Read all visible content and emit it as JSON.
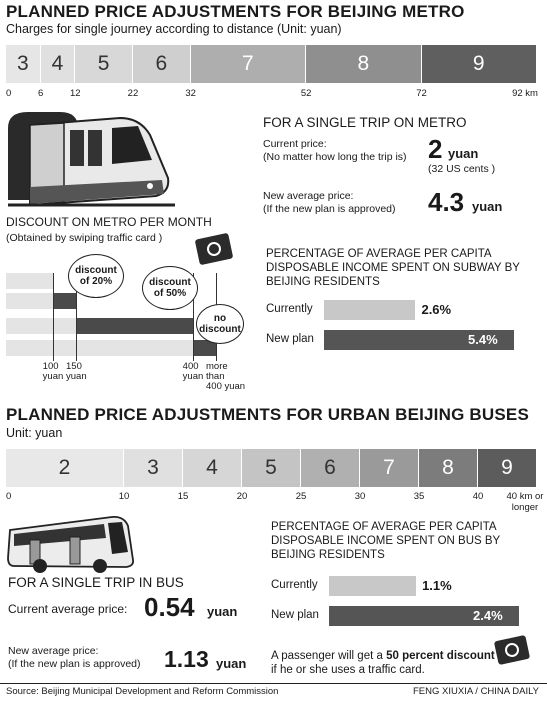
{
  "metro": {
    "title": "PLANNED PRICE ADJUSTMENTS FOR BEIJING METRO",
    "subtitle": "Charges for single journey according to distance (Unit: yuan)",
    "fares": [
      "3",
      "4",
      "5",
      "6",
      "7",
      "8",
      "9"
    ],
    "distance_ticks": [
      "0",
      "6",
      "12",
      "22",
      "32",
      "52",
      "72",
      "92 km"
    ],
    "single_trip": {
      "heading": "FOR A SINGLE TRIP ON METRO",
      "current_label_1": "Current price:",
      "current_label_2": "(No matter how long the trip is)",
      "current_value": "2",
      "current_unit": "yuan",
      "current_usd": "(32 US cents )",
      "new_label_1": "New average price:",
      "new_label_2": "(If the new plan is approved)",
      "new_value": "4.3",
      "new_unit": "yuan"
    },
    "discount": {
      "heading": "DISCOUNT ON METRO PER MONTH",
      "subheading": "(Obtained by swiping traffic card )",
      "bubble_20": "discount of 20%",
      "bubble_50": "discount of 50%",
      "bubble_none": "no discount",
      "ticks": [
        {
          "top": "100",
          "bottom": "yuan"
        },
        {
          "top": "150",
          "bottom": "yuan"
        },
        {
          "top": "400",
          "bottom": "yuan"
        },
        {
          "top": "more than",
          "bottom": "400 yuan"
        }
      ]
    },
    "income": {
      "heading": "PERCENTAGE OF AVERAGE PER CAPITA DISPOSABLE INCOME SPENT ON SUBWAY BY BEIJING RESIDENTS",
      "currently_label": "Currently",
      "currently_value": "2.6%",
      "newplan_label": "New plan",
      "newplan_value": "5.4%"
    }
  },
  "bus": {
    "title": "PLANNED PRICE ADJUSTMENTS FOR URBAN BEIJING BUSES",
    "subtitle": "Unit: yuan",
    "fares": [
      "2",
      "3",
      "4",
      "5",
      "6",
      "7",
      "8",
      "9"
    ],
    "distance_ticks": [
      "0",
      "10",
      "15",
      "20",
      "25",
      "30",
      "35",
      "40",
      "40 km or longer"
    ],
    "single_trip": {
      "heading": "FOR A SINGLE TRIP IN BUS",
      "current_label": "Current average price:",
      "current_value": "0.54",
      "current_unit": "yuan",
      "new_label_1": "New average price:",
      "new_label_2": "(If the new plan is approved)",
      "new_value": "1.13",
      "new_unit": "yuan"
    },
    "income": {
      "heading": "PERCENTAGE OF AVERAGE PER CAPITA DISPOSABLE INCOME SPENT ON BUS BY BEIJING RESIDENTS",
      "currently_label": "Currently",
      "currently_value": "1.1%",
      "newplan_label": "New plan",
      "newplan_value": "2.4%"
    },
    "note_1": "A passenger will get a ",
    "note_bold": "50 percent discount",
    "note_2": " if he or she uses a traffic card."
  },
  "footer": {
    "source": "Source: Beijing Municipal Development and Reform Commission",
    "credit": "FENG XIUXIA / CHINA DAILY"
  },
  "chart_data": [
    {
      "type": "bar",
      "title": "PLANNED PRICE ADJUSTMENTS FOR BEIJING METRO",
      "xlabel": "km",
      "ylabel": "yuan",
      "distance_breaks_km": [
        0,
        6,
        12,
        22,
        32,
        52,
        72,
        92
      ],
      "values": [
        3,
        4,
        5,
        6,
        7,
        8,
        9
      ]
    },
    {
      "type": "bar",
      "title": "PERCENTAGE OF AVERAGE PER CAPITA DISPOSABLE INCOME SPENT ON SUBWAY BY BEIJING RESIDENTS",
      "categories": [
        "Currently",
        "New plan"
      ],
      "values": [
        2.6,
        5.4
      ],
      "xlim": [
        0,
        5.4
      ]
    },
    {
      "type": "bar",
      "title": "PLANNED PRICE ADJUSTMENTS FOR URBAN BEIJING BUSES",
      "xlabel": "km",
      "ylabel": "yuan",
      "distance_breaks_km": [
        0,
        10,
        15,
        20,
        25,
        30,
        35,
        40
      ],
      "values": [
        2,
        3,
        4,
        5,
        6,
        7,
        8,
        9
      ]
    },
    {
      "type": "bar",
      "title": "PERCENTAGE OF AVERAGE PER CAPITA DISPOSABLE INCOME SPENT ON BUS BY BEIJING RESIDENTS",
      "categories": [
        "Currently",
        "New plan"
      ],
      "values": [
        1.1,
        2.4
      ],
      "xlim": [
        0,
        2.4
      ]
    },
    {
      "type": "bar",
      "title": "DISCOUNT ON METRO PER MONTH",
      "categories": [
        "100 yuan",
        "150 yuan",
        "400 yuan",
        "more than 400 yuan"
      ],
      "series": [
        {
          "name": "discount of 20%",
          "range": [
            100,
            150
          ]
        },
        {
          "name": "discount of 50%",
          "range": [
            150,
            400
          ]
        },
        {
          "name": "no discount",
          "range": [
            400,
            450
          ]
        }
      ]
    }
  ]
}
